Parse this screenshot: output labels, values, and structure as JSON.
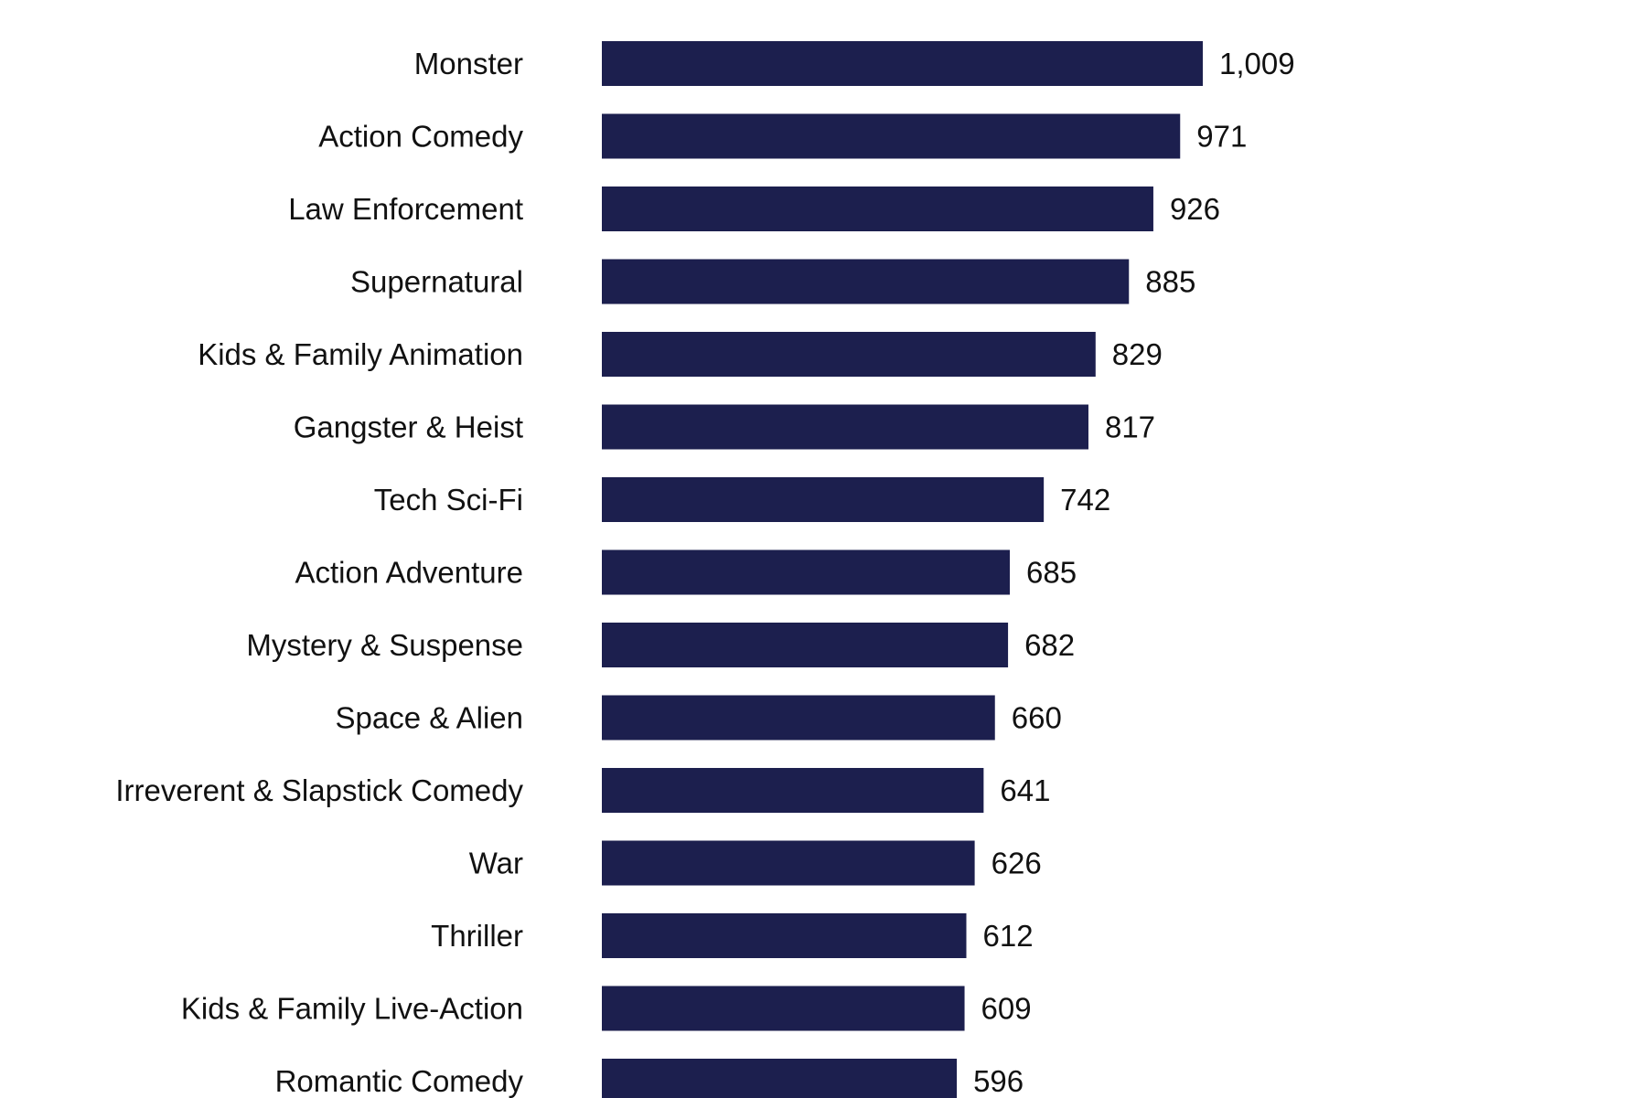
{
  "chart_data": {
    "type": "bar",
    "orientation": "horizontal",
    "categories": [
      "Monster",
      "Action Comedy",
      "Law Enforcement",
      "Supernatural",
      "Kids & Family Animation",
      "Gangster & Heist",
      "Tech Sci-Fi",
      "Action Adventure",
      "Mystery & Suspense",
      "Space & Alien",
      "Irreverent & Slapstick Comedy",
      "War",
      "Thriller",
      "Kids & Family Live-Action",
      "Romantic Comedy"
    ],
    "values": [
      1009,
      971,
      926,
      885,
      829,
      817,
      742,
      685,
      682,
      660,
      641,
      626,
      612,
      609,
      596
    ],
    "value_labels": [
      "1,009",
      "971",
      "926",
      "885",
      "829",
      "817",
      "742",
      "685",
      "682",
      "660",
      "641",
      "626",
      "612",
      "609",
      "596"
    ],
    "xlim": [
      0,
      1009
    ],
    "grid": false,
    "bar_color": "#1c1f4e"
  }
}
